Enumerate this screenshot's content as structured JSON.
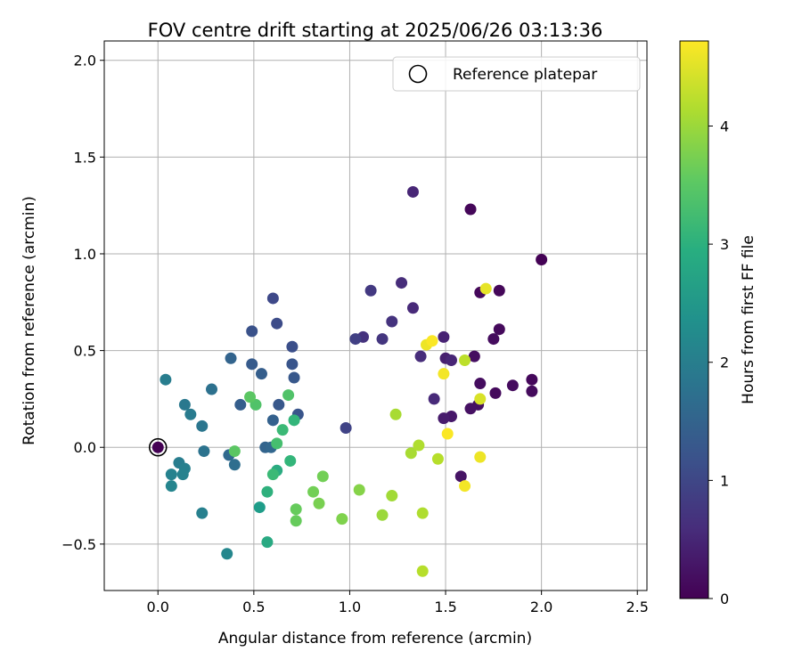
{
  "chart_data": {
    "type": "scatter",
    "title": "FOV centre drift starting at 2025/06/26 03:13:36",
    "xlabel": "Angular distance from reference (arcmin)",
    "ylabel": "Rotation from reference (arcmin)",
    "xlim": [
      -0.28,
      2.55
    ],
    "ylim": [
      -0.74,
      2.1
    ],
    "xticks": [
      0.0,
      0.5,
      1.0,
      1.5,
      2.0,
      2.5
    ],
    "xtick_labels": [
      "0.0",
      "0.5",
      "1.0",
      "1.5",
      "2.0",
      "2.5"
    ],
    "yticks": [
      -0.5,
      0.0,
      0.5,
      1.0,
      1.5,
      2.0
    ],
    "ytick_labels": [
      "−0.5",
      "0.0",
      "0.5",
      "1.0",
      "1.5",
      "2.0"
    ],
    "grid": true,
    "legend": {
      "placement": "top-right",
      "label": "Reference platepar"
    },
    "reference_point": {
      "x": 0.0,
      "y": 0.0
    },
    "colorbar": {
      "label": "Hours from first FF file",
      "range": [
        0,
        4.72
      ],
      "ticks": [
        0,
        1,
        2,
        3,
        4
      ],
      "tick_labels": [
        "0",
        "1",
        "2",
        "3",
        "4"
      ],
      "colormap": "viridis"
    },
    "points": [
      {
        "x": 0.0,
        "y": 0.0,
        "h": 0.0
      },
      {
        "x": 2.0,
        "y": 0.97,
        "h": 0.02
      },
      {
        "x": 1.63,
        "y": 1.23,
        "h": 0.08
      },
      {
        "x": 1.68,
        "y": 0.8,
        "h": 0.1
      },
      {
        "x": 1.78,
        "y": 0.81,
        "h": 0.08
      },
      {
        "x": 1.78,
        "y": 0.61,
        "h": 0.12
      },
      {
        "x": 1.75,
        "y": 0.56,
        "h": 0.15
      },
      {
        "x": 1.65,
        "y": 0.47,
        "h": 0.18
      },
      {
        "x": 1.95,
        "y": 0.35,
        "h": 0.1
      },
      {
        "x": 1.85,
        "y": 0.32,
        "h": 0.14
      },
      {
        "x": 1.95,
        "y": 0.29,
        "h": 0.13
      },
      {
        "x": 1.76,
        "y": 0.28,
        "h": 0.12
      },
      {
        "x": 1.68,
        "y": 0.33,
        "h": 0.16
      },
      {
        "x": 1.67,
        "y": 0.22,
        "h": 0.2
      },
      {
        "x": 1.63,
        "y": 0.2,
        "h": 0.22
      },
      {
        "x": 1.58,
        "y": -0.15,
        "h": 0.25
      },
      {
        "x": 1.53,
        "y": 0.16,
        "h": 0.3
      },
      {
        "x": 1.49,
        "y": 0.15,
        "h": 0.35
      },
      {
        "x": 1.5,
        "y": 0.46,
        "h": 0.4
      },
      {
        "x": 1.53,
        "y": 0.45,
        "h": 0.5
      },
      {
        "x": 1.49,
        "y": 0.57,
        "h": 0.45
      },
      {
        "x": 1.44,
        "y": 0.25,
        "h": 0.55
      },
      {
        "x": 1.37,
        "y": 0.47,
        "h": 0.6
      },
      {
        "x": 1.33,
        "y": 1.32,
        "h": 0.5
      },
      {
        "x": 1.33,
        "y": 0.72,
        "h": 0.55
      },
      {
        "x": 1.27,
        "y": 0.85,
        "h": 0.6
      },
      {
        "x": 1.22,
        "y": 0.65,
        "h": 0.7
      },
      {
        "x": 1.17,
        "y": 0.56,
        "h": 0.75
      },
      {
        "x": 1.11,
        "y": 0.81,
        "h": 0.8
      },
      {
        "x": 1.07,
        "y": 0.57,
        "h": 0.7
      },
      {
        "x": 1.03,
        "y": 0.56,
        "h": 0.9
      },
      {
        "x": 0.98,
        "y": 0.1,
        "h": 0.95
      },
      {
        "x": 0.6,
        "y": 0.77,
        "h": 1.05
      },
      {
        "x": 0.62,
        "y": 0.64,
        "h": 1.1
      },
      {
        "x": 0.7,
        "y": 0.52,
        "h": 1.15
      },
      {
        "x": 0.49,
        "y": 0.6,
        "h": 1.2
      },
      {
        "x": 0.7,
        "y": 0.43,
        "h": 1.25
      },
      {
        "x": 0.71,
        "y": 0.36,
        "h": 1.3
      },
      {
        "x": 0.49,
        "y": 0.43,
        "h": 1.35
      },
      {
        "x": 0.54,
        "y": 0.38,
        "h": 1.4
      },
      {
        "x": 0.38,
        "y": 0.46,
        "h": 1.5
      },
      {
        "x": 0.63,
        "y": 0.22,
        "h": 1.3
      },
      {
        "x": 0.43,
        "y": 0.22,
        "h": 1.4
      },
      {
        "x": 0.6,
        "y": 0.14,
        "h": 1.45
      },
      {
        "x": 0.73,
        "y": 0.17,
        "h": 1.25
      },
      {
        "x": 0.56,
        "y": 0.0,
        "h": 1.5
      },
      {
        "x": 0.59,
        "y": 0.0,
        "h": 1.55
      },
      {
        "x": 0.37,
        "y": -0.04,
        "h": 1.6
      },
      {
        "x": 0.4,
        "y": -0.09,
        "h": 1.7
      },
      {
        "x": 0.28,
        "y": 0.3,
        "h": 1.75
      },
      {
        "x": 0.23,
        "y": 0.11,
        "h": 1.85
      },
      {
        "x": 0.24,
        "y": -0.02,
        "h": 1.8
      },
      {
        "x": 0.14,
        "y": 0.22,
        "h": 1.9
      },
      {
        "x": 0.17,
        "y": 0.17,
        "h": 1.95
      },
      {
        "x": 0.04,
        "y": 0.35,
        "h": 2.0
      },
      {
        "x": 0.11,
        "y": -0.08,
        "h": 2.0
      },
      {
        "x": 0.14,
        "y": -0.11,
        "h": 2.05
      },
      {
        "x": 0.07,
        "y": -0.14,
        "h": 2.1
      },
      {
        "x": 0.13,
        "y": -0.14,
        "h": 2.1
      },
      {
        "x": 0.07,
        "y": -0.2,
        "h": 2.15
      },
      {
        "x": 0.23,
        "y": -0.34,
        "h": 2.05
      },
      {
        "x": 0.36,
        "y": -0.55,
        "h": 2.2
      },
      {
        "x": 0.53,
        "y": -0.31,
        "h": 2.6
      },
      {
        "x": 0.57,
        "y": -0.49,
        "h": 2.85
      },
      {
        "x": 0.57,
        "y": -0.23,
        "h": 3.0
      },
      {
        "x": 0.62,
        "y": -0.12,
        "h": 2.9
      },
      {
        "x": 0.6,
        "y": -0.14,
        "h": 3.2
      },
      {
        "x": 0.69,
        "y": -0.07,
        "h": 3.1
      },
      {
        "x": 0.62,
        "y": 0.02,
        "h": 3.3
      },
      {
        "x": 0.65,
        "y": 0.09,
        "h": 3.2
      },
      {
        "x": 0.71,
        "y": 0.14,
        "h": 3.1
      },
      {
        "x": 0.68,
        "y": 0.27,
        "h": 3.4
      },
      {
        "x": 0.51,
        "y": 0.22,
        "h": 3.4
      },
      {
        "x": 0.48,
        "y": 0.26,
        "h": 3.5
      },
      {
        "x": 0.4,
        "y": -0.02,
        "h": 3.5
      },
      {
        "x": 0.72,
        "y": -0.32,
        "h": 3.6
      },
      {
        "x": 0.72,
        "y": -0.38,
        "h": 3.6
      },
      {
        "x": 0.81,
        "y": -0.23,
        "h": 3.7
      },
      {
        "x": 0.84,
        "y": -0.29,
        "h": 3.75
      },
      {
        "x": 0.86,
        "y": -0.15,
        "h": 3.7
      },
      {
        "x": 0.96,
        "y": -0.37,
        "h": 3.8
      },
      {
        "x": 1.05,
        "y": -0.22,
        "h": 3.85
      },
      {
        "x": 1.17,
        "y": -0.35,
        "h": 4.0
      },
      {
        "x": 1.22,
        "y": -0.25,
        "h": 4.05
      },
      {
        "x": 1.24,
        "y": 0.17,
        "h": 4.1
      },
      {
        "x": 1.32,
        "y": -0.03,
        "h": 4.1
      },
      {
        "x": 1.36,
        "y": 0.01,
        "h": 4.15
      },
      {
        "x": 1.38,
        "y": -0.34,
        "h": 4.15
      },
      {
        "x": 1.38,
        "y": -0.64,
        "h": 4.2
      },
      {
        "x": 1.46,
        "y": -0.06,
        "h": 4.2
      },
      {
        "x": 1.6,
        "y": 0.45,
        "h": 4.25
      },
      {
        "x": 1.68,
        "y": 0.25,
        "h": 4.45
      },
      {
        "x": 1.68,
        "y": -0.05,
        "h": 4.6
      },
      {
        "x": 1.49,
        "y": 0.38,
        "h": 4.65
      },
      {
        "x": 1.51,
        "y": 0.07,
        "h": 4.7
      },
      {
        "x": 1.6,
        "y": -0.2,
        "h": 4.65
      },
      {
        "x": 1.4,
        "y": 0.53,
        "h": 4.6
      },
      {
        "x": 1.43,
        "y": 0.55,
        "h": 4.7
      },
      {
        "x": 1.71,
        "y": 0.82,
        "h": 4.55
      }
    ]
  }
}
